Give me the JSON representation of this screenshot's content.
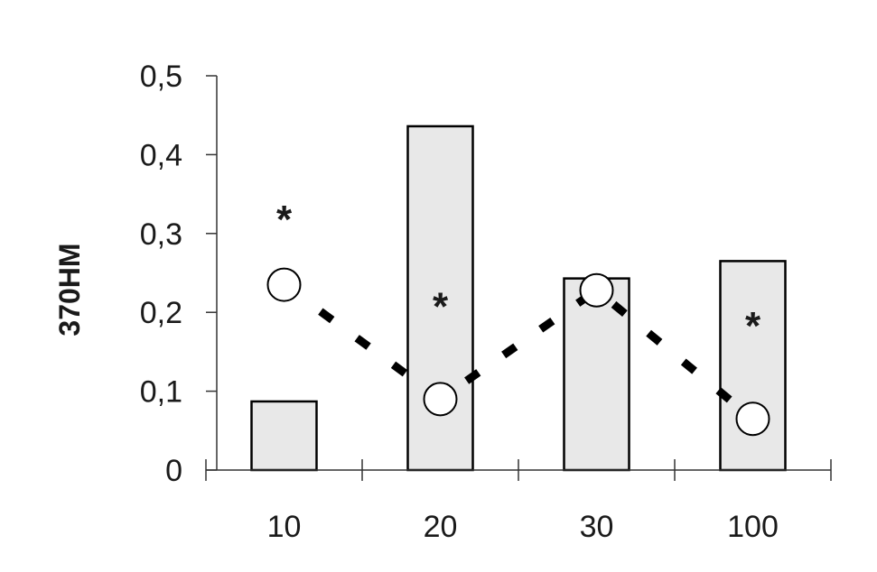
{
  "chart_data": {
    "type": "bar",
    "categories": [
      "10",
      "20",
      "30",
      "100"
    ],
    "ylabel": "370НМ",
    "ylim": [
      0,
      0.5
    ],
    "yticks": [
      "0",
      "0,1",
      "0,2",
      "0,3",
      "0,4",
      "0,5"
    ],
    "grid": false,
    "legend": "none",
    "series": [
      {
        "type": "bar",
        "values": [
          0.087,
          0.436,
          0.243,
          0.265
        ],
        "color": "#e8e8e8"
      },
      {
        "type": "line",
        "style": "dashed",
        "marker": "open-circle",
        "values": [
          0.235,
          0.09,
          0.228,
          0.065
        ],
        "color": "#000000"
      }
    ],
    "annotations": [
      {
        "category": "10",
        "text": "*",
        "y": 0.335
      },
      {
        "category": "20",
        "text": "*",
        "y": 0.225
      },
      {
        "category": "100",
        "text": "*",
        "y": 0.2
      }
    ]
  }
}
